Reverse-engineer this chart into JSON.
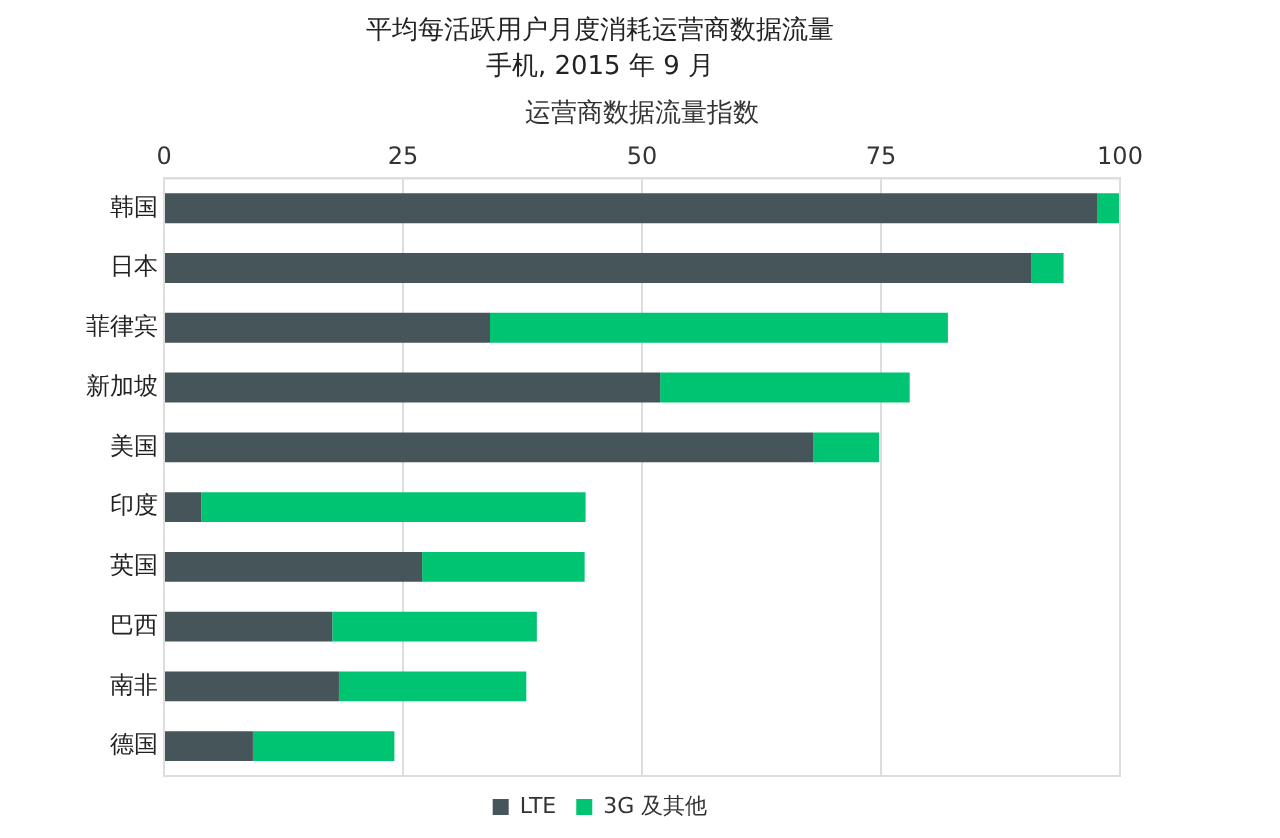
{
  "chart_data": {
    "type": "bar",
    "orientation": "horizontal",
    "stacked": true,
    "title": "平均每活跃用户月度消耗运营商数据流量",
    "subtitle": "手机, 2015 年 9 月",
    "xlabel": "运营商数据流量指数",
    "categories": [
      "韩国",
      "日本",
      "菲律宾",
      "新加坡",
      "美国",
      "印度",
      "英国",
      "巴西",
      "南非",
      "德国"
    ],
    "series": [
      {
        "name": "LTE",
        "color": "#455559",
        "values": [
          97.6,
          90.7,
          34.1,
          51.9,
          67.9,
          3.9,
          27.0,
          17.6,
          18.3,
          9.3
        ]
      },
      {
        "name": "3G 及其他",
        "color": "#00c472",
        "values": [
          2.4,
          3.4,
          47.9,
          26.1,
          6.9,
          40.2,
          17.0,
          21.4,
          19.6,
          14.8
        ]
      }
    ],
    "xlim": [
      0,
      100
    ],
    "xticks": [
      0,
      25,
      50,
      75,
      100
    ],
    "grid": "x",
    "legend": "bottom"
  }
}
